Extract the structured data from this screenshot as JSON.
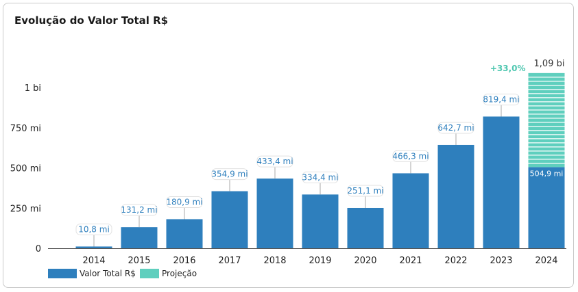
{
  "chart_data": {
    "type": "bar",
    "title": "Evolução do Valor Total R$",
    "categories": [
      "2014",
      "2015",
      "2016",
      "2017",
      "2018",
      "2019",
      "2020",
      "2021",
      "2022",
      "2023",
      "2024"
    ],
    "series": [
      {
        "name": "Valor Total R$",
        "color": "#2e7fbd",
        "values": [
          10.8,
          131.2,
          180.9,
          354.9,
          433.4,
          334.4,
          251.1,
          466.3,
          642.7,
          819.4,
          504.9
        ],
        "labels": [
          "10,8 mi",
          "131,2 mi",
          "180,9 mi",
          "354,9 mi",
          "433,4 mi",
          "334,4 mi",
          "251,1 mi",
          "466,3 mi",
          "642,7 mi",
          "819,4 mi",
          "504,9 mi"
        ]
      },
      {
        "name": "Projeção",
        "color": "#5fcfbe",
        "values": [
          0,
          0,
          0,
          0,
          0,
          0,
          0,
          0,
          0,
          0,
          585.1
        ]
      }
    ],
    "total_2024_label": "1,09 bi",
    "growth_label": "+33,0%",
    "yticks": [
      {
        "value": 0,
        "label": "0"
      },
      {
        "value": 250,
        "label": "250 mi"
      },
      {
        "value": 500,
        "label": "500 mi"
      },
      {
        "value": 750,
        "label": "750 mi"
      },
      {
        "value": 1000,
        "label": "1 bi"
      }
    ],
    "ylim": [
      0,
      1000
    ],
    "legend": "bottom-left",
    "grid": false
  }
}
